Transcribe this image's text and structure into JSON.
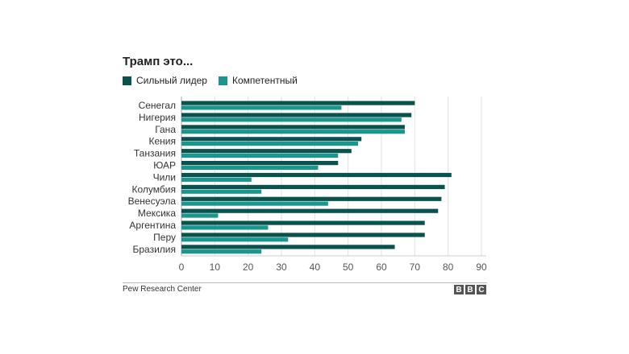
{
  "chart_data": {
    "type": "bar",
    "orientation": "horizontal",
    "title": "Трамп это...",
    "categories": [
      "Сенегал",
      "Нигерия",
      "Гана",
      "Кения",
      "Танзания",
      "ЮАР",
      "Чили",
      "Колумбия",
      "Венесуэла",
      "Мексика",
      "Аргентина",
      "Перу",
      "Бразилия"
    ],
    "series": [
      {
        "name": "Сильный лидер",
        "color": "#0a524c",
        "values": [
          70,
          69,
          67,
          54,
          51,
          47,
          81,
          79,
          78,
          77,
          73,
          73,
          64
        ]
      },
      {
        "name": "Компетентный",
        "color": "#19978f",
        "values": [
          48,
          66,
          67,
          53,
          47,
          41,
          21,
          24,
          44,
          11,
          26,
          32,
          24
        ]
      }
    ],
    "xlim": [
      0,
      90
    ],
    "xticks": [
      0,
      10,
      20,
      30,
      40,
      50,
      60,
      70,
      80,
      90
    ],
    "grid": true,
    "legend_position": "top-left"
  },
  "footer": {
    "source": "Pew Research Center",
    "logo_letters": [
      "B",
      "B",
      "C"
    ]
  }
}
